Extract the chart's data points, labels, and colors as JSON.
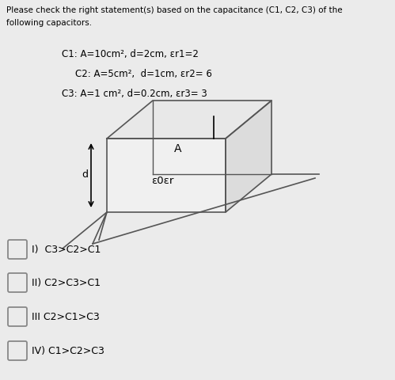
{
  "title_line1": "Please check the right statement(s) based on the capacitance (C1, C2, C3) of the",
  "title_line2": "following capacitors.",
  "c1_text": "C1: A=10cm², d=2cm, εr1=2",
  "c2_text": "C2: A=5cm²,  d=1cm, εr2= 6",
  "c3_text": "C3: A=1 cm², d=0.2cm, εr3= 3",
  "option_I": "I)  C3>C2>C1",
  "option_II": "II) C2>C3>C1",
  "option_III": "III C2>C1>C3",
  "option_IV": "IV) C1>C2>C3",
  "bg_color": "#ebebeb",
  "box_face_front": "#f0f0f0",
  "box_face_top": "#e8e8e8",
  "box_face_right": "#dcdcdc",
  "box_edge": "#555555",
  "label_A": "A",
  "label_inside": "ε0εr",
  "label_d": "d"
}
